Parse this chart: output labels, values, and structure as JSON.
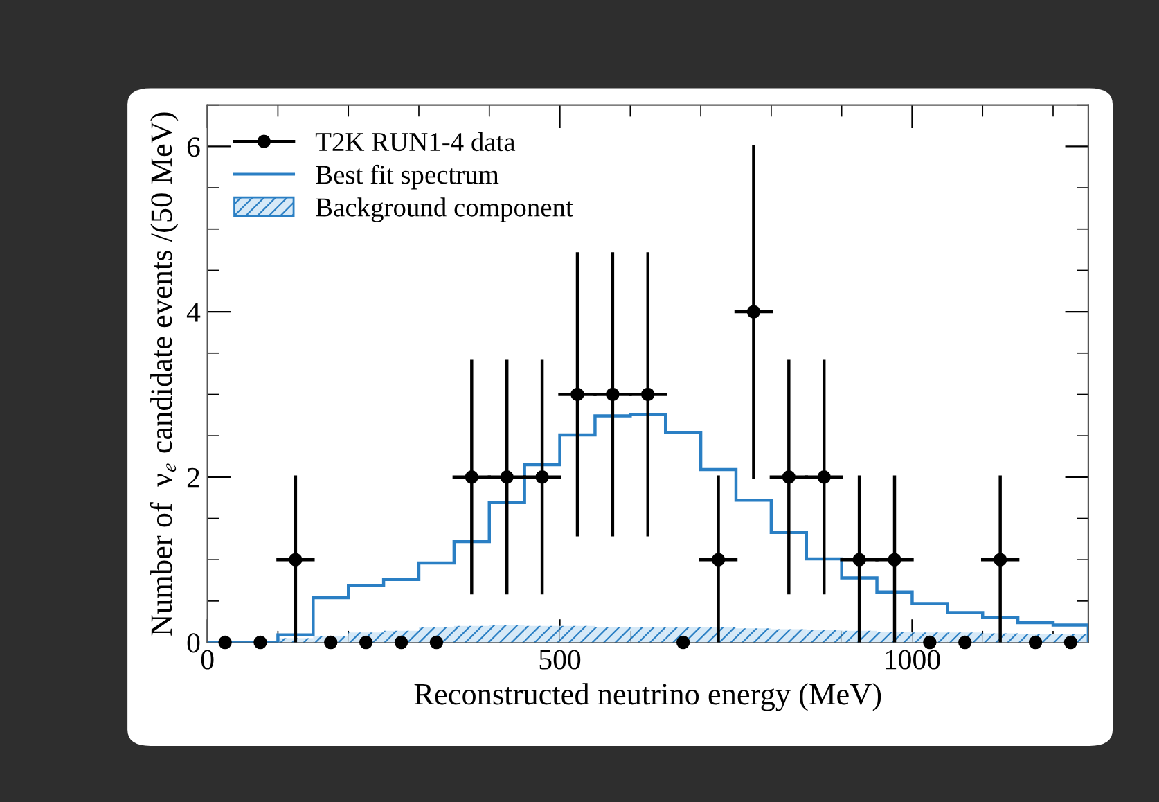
{
  "chart_data": {
    "type": "histogram",
    "xlabel": "Reconstructed neutrino energy (MeV)",
    "ylabel": "Number of  ν$_{e}$ candidate events /(50 MeV)",
    "bins": [
      0,
      50,
      100,
      150,
      200,
      250,
      300,
      350,
      400,
      450,
      500,
      550,
      600,
      650,
      700,
      750,
      800,
      850,
      900,
      950,
      1000,
      1050,
      1100,
      1150,
      1200,
      1250
    ],
    "series": [
      {
        "name": "T2K RUN1-4 data",
        "type": "scatter",
        "color": "#000000",
        "marker": "circle",
        "x": [
          25,
          75,
          125,
          175,
          225,
          275,
          325,
          375,
          425,
          475,
          525,
          575,
          625,
          675,
          725,
          775,
          825,
          875,
          925,
          975,
          1025,
          1075,
          1125,
          1175,
          1225
        ],
        "values": [
          0,
          0,
          1,
          0,
          0,
          0,
          0,
          2,
          2,
          2,
          3,
          3,
          3,
          0,
          1,
          4,
          2,
          2,
          1,
          1,
          0,
          0,
          1,
          0,
          0
        ],
        "errors": [
          null,
          null,
          [
            0,
            2
          ],
          null,
          null,
          null,
          null,
          [
            0.6,
            3.4
          ],
          [
            0.6,
            3.4
          ],
          [
            0.6,
            3.4
          ],
          [
            1.3,
            4.7
          ],
          [
            1.3,
            4.7
          ],
          [
            1.3,
            4.7
          ],
          null,
          [
            0,
            2
          ],
          [
            2,
            6
          ],
          [
            0.6,
            3.4
          ],
          [
            0.6,
            3.4
          ],
          [
            0,
            2
          ],
          [
            0,
            2
          ],
          null,
          null,
          [
            0,
            2
          ],
          null,
          null
        ],
        "xerrors": [
          null,
          null,
          25,
          null,
          null,
          null,
          null,
          25,
          25,
          25,
          25,
          25,
          25,
          null,
          25,
          25,
          25,
          25,
          25,
          25,
          null,
          null,
          25,
          null,
          null
        ]
      },
      {
        "name": "Best fit spectrum",
        "color": "#2a7fc4",
        "values": [
          0,
          0,
          0.09,
          0.54,
          0.69,
          0.76,
          0.96,
          1.22,
          1.69,
          2.15,
          2.51,
          2.74,
          2.76,
          2.54,
          2.09,
          1.72,
          1.33,
          1.01,
          0.78,
          0.61,
          0.47,
          0.36,
          0.3,
          0.24,
          0.21
        ]
      },
      {
        "name": "Background component",
        "type": "bar",
        "color": "#2a7fc4",
        "x": [
          25,
          75,
          125,
          175,
          225,
          275,
          325,
          375,
          425,
          475,
          525,
          575,
          625,
          675,
          725,
          775,
          825,
          875,
          925,
          975,
          1025,
          1075,
          1125,
          1175,
          1225
        ],
        "values": [
          0,
          0,
          0.05,
          0.08,
          0.12,
          0.14,
          0.18,
          0.2,
          0.21,
          0.2,
          0.2,
          0.19,
          0.19,
          0.18,
          0.18,
          0.17,
          0.16,
          0.15,
          0.14,
          0.13,
          0.12,
          0.12,
          0.11,
          0.1,
          0.1
        ]
      }
    ],
    "xlim": [
      0,
      1250
    ],
    "xticks": [
      0,
      500,
      1000
    ],
    "ylim": [
      0,
      6.5
    ],
    "yticks": [
      0,
      2,
      4,
      6
    ],
    "legend": "top left",
    "grid": false
  }
}
